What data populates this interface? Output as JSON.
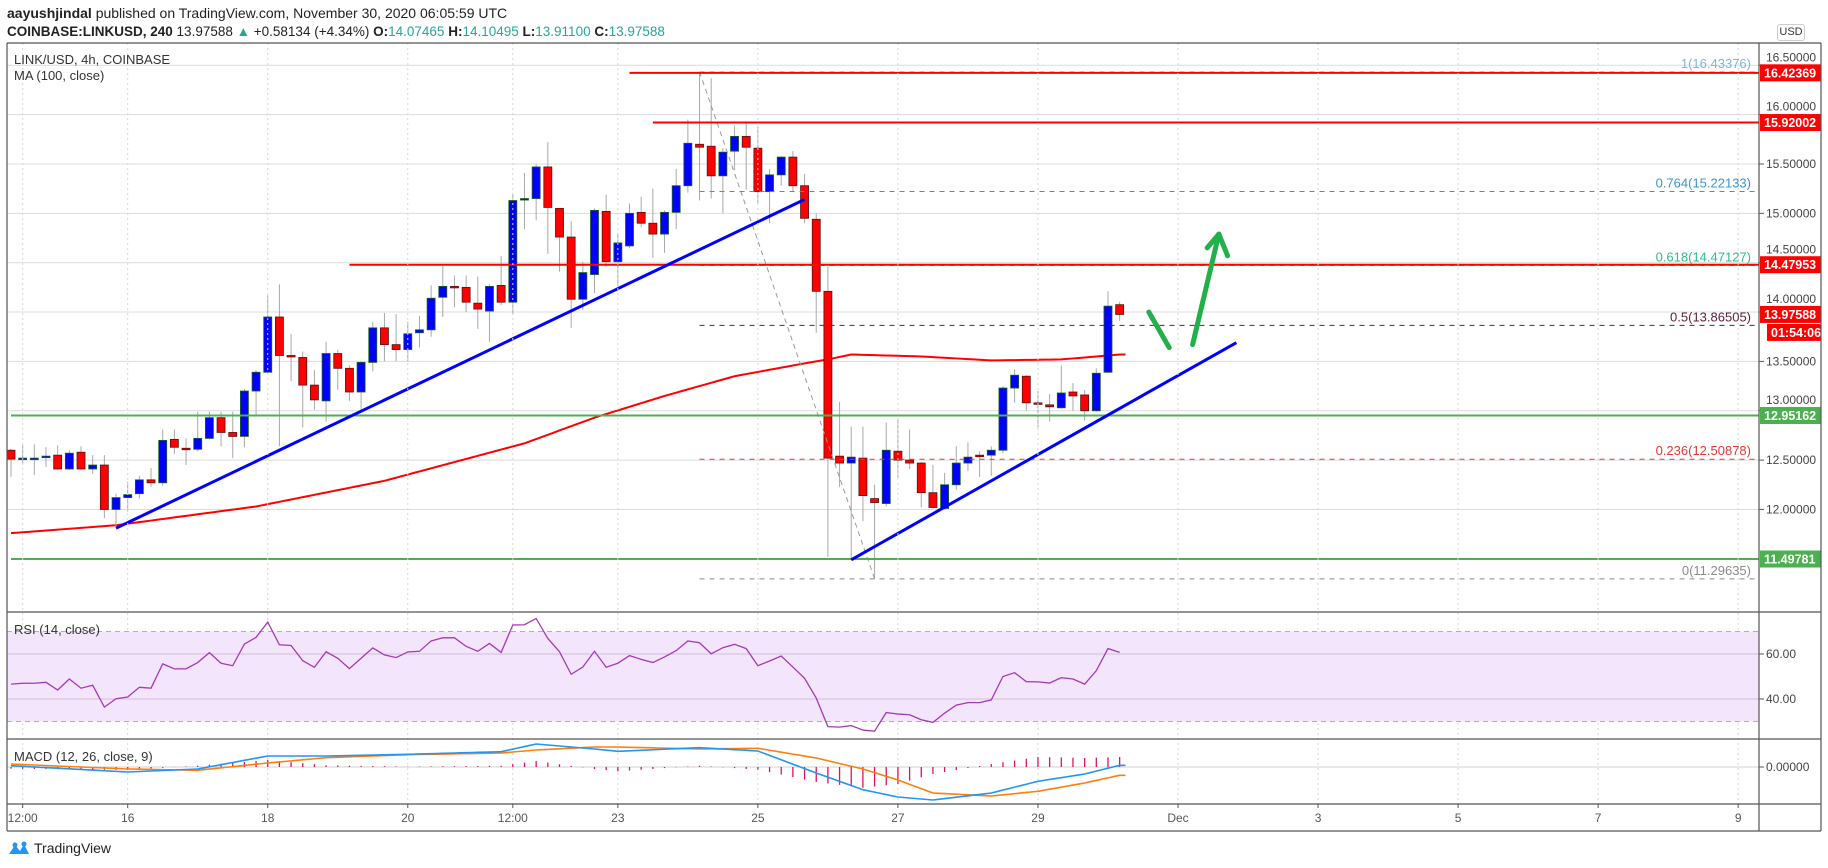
{
  "header": {
    "author": "aayushjindal",
    "published": " published on TradingView.com, November 30, 2020 06:05:59 UTC",
    "symbol": "COINBASE:LINKUSD, 240",
    "last": "13.97588",
    "change": "+0.58134 (+4.34%)",
    "o_label": "O:",
    "o": "14.07465",
    "h_label": "H:",
    "h": "14.10495",
    "l_label": "L:",
    "l": "13.91100",
    "c_label": "C:",
    "c": "13.97588",
    "up_color": "#26a69a"
  },
  "legend": {
    "title": "LINK/USD, 4h, COINBASE",
    "ma": "MA (100, close)"
  },
  "footer": {
    "brand": "TradingView"
  },
  "chart_data": {
    "type": "candlestick",
    "x_start": "2020-11-14T08:00",
    "interval": "4h",
    "ohlc_order": [
      "open",
      "high",
      "low",
      "close"
    ],
    "ohlc": [
      [
        12.6,
        12.615,
        12.33,
        12.51
      ],
      [
        12.51,
        12.65,
        12.46,
        12.52
      ],
      [
        12.51,
        12.66,
        12.35,
        12.52
      ],
      [
        12.53,
        12.63,
        12.43,
        12.54
      ],
      [
        12.55,
        12.65,
        12.4,
        12.41
      ],
      [
        12.41,
        12.6,
        12.4,
        12.57
      ],
      [
        12.58,
        12.64,
        12.4,
        12.41
      ],
      [
        12.41,
        12.55,
        12.36,
        12.45
      ],
      [
        12.45,
        12.55,
        11.91,
        12.0
      ],
      [
        12.0,
        12.16,
        11.83,
        12.12
      ],
      [
        12.12,
        12.28,
        11.98,
        12.15
      ],
      [
        12.16,
        12.34,
        12.11,
        12.3
      ],
      [
        12.3,
        12.42,
        12.23,
        12.27
      ],
      [
        12.27,
        12.81,
        12.24,
        12.7
      ],
      [
        12.71,
        12.81,
        12.56,
        12.63
      ],
      [
        12.62,
        12.72,
        12.45,
        12.61
      ],
      [
        12.61,
        12.99,
        12.59,
        12.72
      ],
      [
        12.72,
        12.99,
        12.71,
        12.93
      ],
      [
        12.93,
        12.99,
        12.64,
        12.78
      ],
      [
        12.78,
        12.99,
        12.52,
        12.74
      ],
      [
        12.74,
        13.22,
        12.63,
        13.2
      ],
      [
        13.2,
        13.41,
        12.96,
        13.39
      ],
      [
        13.39,
        14.17,
        13.39,
        13.95
      ],
      [
        13.95,
        14.28,
        12.64,
        13.56
      ],
      [
        13.56,
        13.78,
        13.3,
        13.555
      ],
      [
        13.54,
        13.6,
        12.83,
        13.26
      ],
      [
        13.26,
        13.41,
        13.01,
        13.11
      ],
      [
        13.1,
        13.7,
        12.89,
        13.58
      ],
      [
        13.58,
        13.62,
        13.21,
        13.43
      ],
      [
        13.43,
        13.46,
        13.1,
        13.19
      ],
      [
        13.19,
        13.5,
        13.01,
        13.49
      ],
      [
        13.49,
        13.9,
        13.4,
        13.84
      ],
      [
        13.84,
        13.99,
        13.5,
        13.67
      ],
      [
        13.67,
        13.98,
        13.5,
        13.62
      ],
      [
        13.62,
        13.9,
        13.5,
        13.78
      ],
      [
        13.79,
        13.96,
        13.64,
        13.82
      ],
      [
        13.82,
        14.27,
        13.75,
        14.14
      ],
      [
        14.15,
        14.47,
        13.95,
        14.26
      ],
      [
        14.26,
        14.37,
        14.05,
        14.25
      ],
      [
        14.25,
        14.37,
        14.0,
        14.1
      ],
      [
        14.09,
        14.36,
        13.83,
        14.03
      ],
      [
        14.01,
        14.28,
        13.7,
        14.26
      ],
      [
        14.27,
        14.57,
        14.07,
        14.1
      ],
      [
        14.1,
        15.2,
        13.98,
        15.13
      ],
      [
        15.14,
        15.41,
        14.84,
        15.15
      ],
      [
        15.15,
        15.5,
        14.93,
        15.47
      ],
      [
        15.47,
        15.72,
        14.59,
        15.06
      ],
      [
        15.05,
        15.05,
        14.41,
        14.76
      ],
      [
        14.76,
        14.92,
        13.84,
        14.13
      ],
      [
        14.13,
        14.51,
        14.02,
        14.4
      ],
      [
        14.38,
        15.05,
        14.19,
        15.03
      ],
      [
        15.02,
        15.19,
        14.46,
        14.51
      ],
      [
        14.51,
        14.8,
        14.26,
        14.7
      ],
      [
        14.67,
        15.1,
        14.65,
        15.0
      ],
      [
        15.01,
        15.17,
        14.86,
        14.9
      ],
      [
        14.9,
        15.25,
        14.55,
        14.79
      ],
      [
        14.79,
        15.03,
        14.6,
        15.01
      ],
      [
        15.01,
        15.45,
        14.84,
        15.28
      ],
      [
        15.28,
        15.95,
        15.21,
        15.71
      ],
      [
        15.7,
        16.43376,
        15.13,
        15.67
      ],
      [
        15.68,
        16.37,
        15.15,
        15.38
      ],
      [
        15.38,
        15.66,
        15.0,
        15.62
      ],
      [
        15.63,
        15.89,
        15.44,
        15.78
      ],
      [
        15.78,
        15.92,
        15.24,
        15.67
      ],
      [
        15.66,
        15.88,
        15.1,
        15.22
      ],
      [
        15.22,
        15.45,
        14.9,
        15.39
      ],
      [
        15.39,
        15.58,
        15.28,
        15.57
      ],
      [
        15.57,
        15.63,
        15.22,
        15.28
      ],
      [
        15.28,
        15.4,
        14.9,
        14.95
      ],
      [
        14.94,
        15.0,
        13.79,
        14.21
      ],
      [
        14.21,
        14.46,
        11.52,
        12.52
      ],
      [
        12.54,
        13.09,
        12.23,
        12.47
      ],
      [
        12.47,
        12.84,
        11.49,
        12.53
      ],
      [
        12.52,
        12.84,
        11.88,
        12.14
      ],
      [
        12.11,
        12.25,
        11.29635,
        12.07
      ],
      [
        12.06,
        12.88,
        12.03,
        12.6
      ],
      [
        12.59,
        12.92,
        12.32,
        12.5
      ],
      [
        12.5,
        12.81,
        12.41,
        12.47
      ],
      [
        12.47,
        12.48,
        12.02,
        12.17
      ],
      [
        12.17,
        12.45,
        12.01,
        12.02
      ],
      [
        12.01,
        12.37,
        12.0,
        12.25
      ],
      [
        12.25,
        12.64,
        12.2,
        12.47
      ],
      [
        12.47,
        12.68,
        12.39,
        12.53
      ],
      [
        12.55,
        12.59,
        12.33,
        12.54
      ],
      [
        12.55,
        12.64,
        12.34,
        12.6
      ],
      [
        12.6,
        13.25,
        12.57,
        13.23
      ],
      [
        13.23,
        13.42,
        13.08,
        13.36
      ],
      [
        13.35,
        13.36,
        13.0,
        13.08
      ],
      [
        13.08,
        13.2,
        12.83,
        13.07
      ],
      [
        13.06,
        13.17,
        12.89,
        13.04
      ],
      [
        13.03,
        13.46,
        13.02,
        13.18
      ],
      [
        13.19,
        13.28,
        13.0,
        13.15
      ],
      [
        13.16,
        13.21,
        12.9,
        13.0
      ],
      [
        13.0,
        13.43,
        12.99,
        13.38
      ],
      [
        13.39,
        14.21,
        13.38,
        14.06
      ],
      [
        14.07465,
        14.10495,
        13.911,
        13.97588
      ]
    ],
    "colors": {
      "up": "#0000ff",
      "up_border": "#1b5e20",
      "down": "#ff0000",
      "down_border": "#5d1010",
      "wick": "#a8a8a8"
    },
    "price_axis": {
      "currency": "USD",
      "ticks": [
        "16.50000",
        "16.00000",
        "15.50000",
        "15.00000",
        "14.50000",
        "14.00000",
        "13.50000",
        "13.00000",
        "12.50000",
        "12.00000"
      ]
    },
    "time_axis": {
      "labels": [
        {
          "t": "2020-11-14T12:00",
          "label": "12:00"
        },
        {
          "t": "2020-11-16T00:00",
          "label": "16"
        },
        {
          "t": "2020-11-18T00:00",
          "label": "18"
        },
        {
          "t": "2020-11-20T00:00",
          "label": "20"
        },
        {
          "t": "2020-11-21T12:00",
          "label": "12:00"
        },
        {
          "t": "2020-11-23T00:00",
          "label": "23"
        },
        {
          "t": "2020-11-25T00:00",
          "label": "25"
        },
        {
          "t": "2020-11-27T00:00",
          "label": "27"
        },
        {
          "t": "2020-11-29T00:00",
          "label": "29"
        },
        {
          "t": "2020-12-01T00:00",
          "label": "Dec"
        },
        {
          "t": "2020-12-03T00:00",
          "label": "3"
        },
        {
          "t": "2020-12-05T00:00",
          "label": "5"
        },
        {
          "t": "2020-12-07T00:00",
          "label": "7"
        },
        {
          "t": "2020-12-09T00:00",
          "label": "9"
        }
      ]
    },
    "ma100": {
      "color": "#ff0000",
      "points": [
        [
          "2020-11-14T08:00",
          11.76
        ],
        [
          "2020-11-15T20:00",
          11.84
        ],
        [
          "2020-11-17T20:00",
          12.03
        ],
        [
          "2020-11-19T16:00",
          12.29
        ],
        [
          "2020-11-21T16:00",
          12.67
        ],
        [
          "2020-11-22T16:00",
          12.93
        ],
        [
          "2020-11-23T16:00",
          13.15
        ],
        [
          "2020-11-24T16:00",
          13.35
        ],
        [
          "2020-11-25T16:00",
          13.48
        ],
        [
          "2020-11-26T00:00",
          13.52
        ],
        [
          "2020-11-26T08:00",
          13.57
        ],
        [
          "2020-11-27T08:00",
          13.55
        ],
        [
          "2020-11-28T08:00",
          13.51
        ],
        [
          "2020-11-29T08:00",
          13.52
        ],
        [
          "2020-11-30T04:00",
          13.57
        ]
      ]
    },
    "horizontal_lines": [
      {
        "price": 16.42369,
        "from": "2020-11-23T04:00",
        "color": "#ff0000",
        "tag": "16.42369"
      },
      {
        "price": 15.92002,
        "from": "2020-11-23T12:00",
        "color": "#ff0000",
        "tag": "15.92002"
      },
      {
        "price": 14.47953,
        "from": "2020-11-19T04:00",
        "color": "#ff0000",
        "tag": "14.47953"
      },
      {
        "price": 12.95162,
        "from": "2020-11-14T08:00",
        "color": "#4caf50",
        "tag": "12.95162"
      },
      {
        "price": 11.49781,
        "from": "2020-11-14T08:00",
        "color": "#4caf50",
        "tag": "11.49781"
      }
    ],
    "last_price": {
      "price": 13.97588,
      "tag": "13.97588",
      "countdown": "01:54:06",
      "color": "#ff0000"
    },
    "fib": {
      "from": "2020-11-24T04:00",
      "swing": [
        [
          "2020-11-24T04:00",
          16.43376
        ],
        [
          "2020-11-26T16:00",
          11.29635
        ]
      ],
      "levels": [
        {
          "ratio": "1",
          "price": 16.43376,
          "text": "16.43376",
          "color": "#80b4d6"
        },
        {
          "ratio": "0.764",
          "price": 15.22133,
          "text": "15.22133",
          "color": "#3a96d0"
        },
        {
          "ratio": "0.618",
          "price": 14.47127,
          "text": "14.47127",
          "color": "#2ebd85"
        },
        {
          "ratio": "0.5",
          "price": 13.86505,
          "text": "13.86505",
          "color": "#5c1f3a"
        },
        {
          "ratio": "0.236",
          "price": 12.50878,
          "text": "12.50878",
          "color": "#e53935"
        },
        {
          "ratio": "0",
          "price": 11.29635,
          "text": "11.29635",
          "color": "#8a8a8a"
        }
      ]
    },
    "trendlines": [
      {
        "color": "#0000ff",
        "points": [
          [
            "2020-11-15T20:00",
            11.81
          ],
          [
            "2020-11-25T16:00",
            15.14
          ]
        ]
      },
      {
        "color": "#0000ff",
        "points": [
          [
            "2020-11-26T08:00",
            11.49
          ],
          [
            "2020-12-01T20:00",
            13.69
          ]
        ]
      }
    ],
    "projection": {
      "color": "#22b04b",
      "dip": [
        [
          "2020-11-30T14:00",
          14.0
        ],
        [
          "2020-11-30T21:00",
          13.64
        ]
      ],
      "arrow": [
        [
          "2020-12-01T05:00",
          13.67
        ],
        [
          "2020-12-01T14:00",
          14.79
        ]
      ],
      "arrow_head": [
        [
          "2020-12-01T10:00",
          14.65
        ],
        [
          "2020-12-01T14:00",
          14.79
        ],
        [
          "2020-12-01T17:00",
          14.57
        ]
      ]
    },
    "rsi": {
      "label": "RSI (14, close)",
      "color": "#a43ab5",
      "band": [
        30,
        70
      ],
      "ticks": [
        {
          "v": 60,
          "label": "60.00"
        },
        {
          "v": 40,
          "label": "40.00"
        }
      ],
      "values": [
        46.6,
        47.0,
        47.0,
        47.4,
        44.0,
        48.9,
        44.8,
        46.1,
        36.4,
        40.1,
        40.9,
        45.2,
        44.8,
        55.6,
        53.4,
        53.4,
        56.2,
        60.6,
        55.9,
        54.8,
        64.4,
        67.4,
        74.2,
        64.1,
        63.8,
        57.0,
        54.1,
        61.0,
        58.1,
        53.5,
        58.1,
        62.7,
        59.6,
        58.4,
        60.9,
        61.2,
        65.8,
        67.2,
        67.2,
        63.4,
        61.2,
        64.7,
        60.7,
        72.9,
        73.0,
        75.8,
        66.9,
        61.0,
        51.0,
        54.2,
        61.2,
        54.1,
        55.9,
        59.3,
        57.6,
        56.2,
        58.7,
        61.5,
        65.8,
        65.0,
        60.1,
        62.8,
        64.3,
        62.4,
        54.8,
        56.9,
        59.1,
        54.2,
        49.2,
        40.4,
        27.7,
        27.5,
        28.2,
        26.2,
        25.7,
        34.0,
        33.3,
        33.0,
        30.8,
        29.6,
        33.7,
        37.3,
        38.4,
        38.4,
        39.6,
        50.0,
        51.7,
        47.7,
        47.6,
        47.1,
        49.5,
        48.9,
        46.6,
        52.6,
        62.4,
        60.7
      ]
    },
    "macd": {
      "label": "MACD (12, 26, close, 9)",
      "ticks": [
        {
          "v": 0,
          "label": "0.00000"
        }
      ],
      "colors": {
        "macd": "#2196f3",
        "signal": "#ff7f0e",
        "histogram": "#e0115f"
      },
      "macd_line": [
        [
          "2020-11-14T08:00",
          0.013
        ],
        [
          "2020-11-16T00:00",
          -0.05
        ],
        [
          "2020-11-17T00:00",
          -0.02
        ],
        [
          "2020-11-18T00:00",
          0.11
        ],
        [
          "2020-11-18T20:00",
          0.11
        ],
        [
          "2020-11-20T00:00",
          0.127
        ],
        [
          "2020-11-21T08:00",
          0.153
        ],
        [
          "2020-11-21T20:00",
          0.23
        ],
        [
          "2020-11-22T16:00",
          0.18
        ],
        [
          "2020-11-23T00:00",
          0.157
        ],
        [
          "2020-11-24T04:00",
          0.193
        ],
        [
          "2020-11-25T00:00",
          0.16
        ],
        [
          "2020-11-25T20:00",
          -0.06
        ],
        [
          "2020-11-26T12:00",
          -0.227
        ],
        [
          "2020-11-27T00:00",
          -0.3
        ],
        [
          "2020-11-27T12:00",
          -0.33
        ],
        [
          "2020-11-28T08:00",
          -0.26
        ],
        [
          "2020-11-29T00:00",
          -0.143
        ],
        [
          "2020-11-29T16:00",
          -0.07
        ],
        [
          "2020-11-30T04:00",
          0.017
        ]
      ],
      "signal_line": [
        [
          "2020-11-14T08:00",
          0.03
        ],
        [
          "2020-11-16T00:00",
          -0.02
        ],
        [
          "2020-11-17T00:00",
          -0.033
        ],
        [
          "2020-11-18T00:00",
          0.04
        ],
        [
          "2020-11-18T20:00",
          0.093
        ],
        [
          "2020-11-20T00:00",
          0.123
        ],
        [
          "2020-11-21T08:00",
          0.14
        ],
        [
          "2020-11-21T20:00",
          0.17
        ],
        [
          "2020-11-22T16:00",
          0.2
        ],
        [
          "2020-11-23T00:00",
          0.2
        ],
        [
          "2020-11-24T04:00",
          0.18
        ],
        [
          "2020-11-25T00:00",
          0.187
        ],
        [
          "2020-11-25T20:00",
          0.09
        ],
        [
          "2020-11-26T12:00",
          -0.02
        ],
        [
          "2020-11-27T00:00",
          -0.13
        ],
        [
          "2020-11-27T12:00",
          -0.26
        ],
        [
          "2020-11-28T08:00",
          -0.29
        ],
        [
          "2020-11-29T00:00",
          -0.243
        ],
        [
          "2020-11-29T16:00",
          -0.16
        ],
        [
          "2020-11-30T04:00",
          -0.083
        ]
      ]
    }
  }
}
